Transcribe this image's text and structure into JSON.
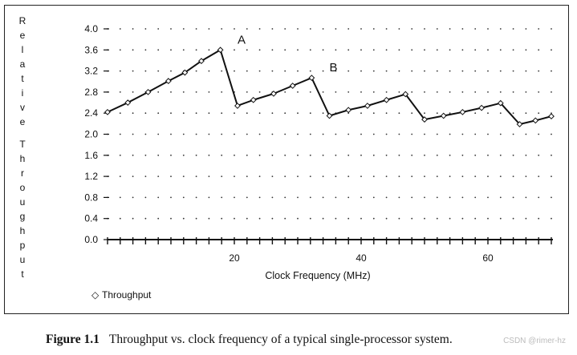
{
  "chart_data": {
    "type": "line",
    "title": "",
    "xlabel": "Clock Frequency (MHz)",
    "ylabel": "Relative Throughput",
    "xlim": [
      0,
      70
    ],
    "ylim": [
      0,
      4.0
    ],
    "xticks": [
      20,
      40,
      60
    ],
    "yticks": [
      "0.0",
      "0.4",
      "0.8",
      "1.2",
      "1.6",
      "2.0",
      "2.4",
      "2.8",
      "3.2",
      "3.6",
      "4.0"
    ],
    "grid": "dotted",
    "series": [
      {
        "name": "Throughput",
        "marker": "diamond",
        "x": [
          0,
          3.2,
          6.4,
          9.6,
          12.2,
          14.8,
          17.8,
          20.5,
          23,
          26.2,
          29.2,
          32.2,
          35,
          38,
          41,
          44,
          47,
          50,
          53,
          56,
          59,
          62,
          65,
          67.5,
          70
        ],
        "values": [
          2.42,
          2.6,
          2.8,
          3.01,
          3.17,
          3.39,
          3.6,
          2.54,
          2.65,
          2.77,
          2.92,
          3.07,
          2.35,
          2.46,
          2.54,
          2.65,
          2.76,
          2.28,
          2.35,
          2.42,
          2.5,
          2.59,
          2.19,
          2.26,
          2.34
        ]
      }
    ],
    "annotations": [
      {
        "text": "A",
        "x": 20.5,
        "y": 3.6
      },
      {
        "text": "B",
        "x": 35,
        "y": 3.07
      }
    ],
    "legend": {
      "text": "Throughput",
      "symbol": "◇"
    }
  },
  "caption": {
    "label": "Figure 1.1",
    "text": "Throughput vs. clock frequency of a typical single-processor system."
  },
  "watermark": "CSDN @rimer-hz"
}
